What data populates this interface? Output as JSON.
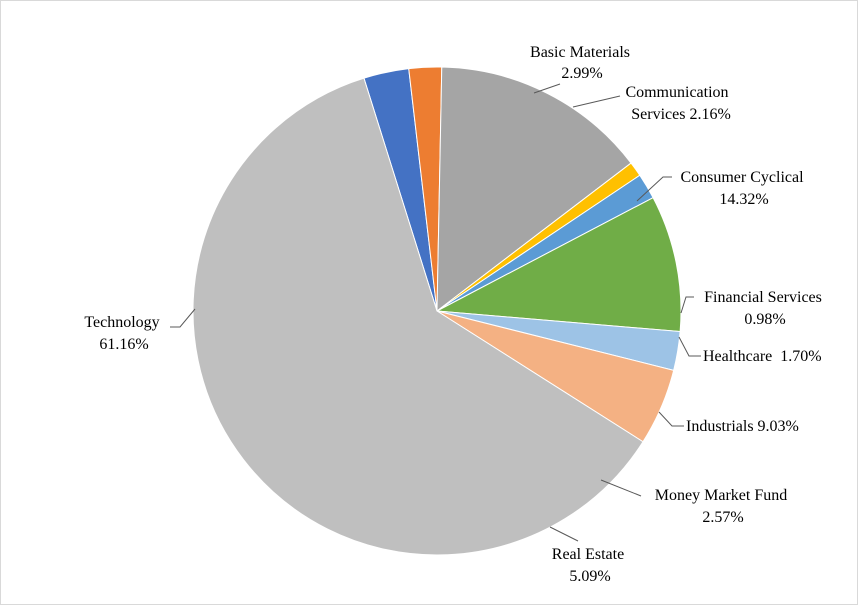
{
  "chart_data": {
    "type": "pie",
    "title": "",
    "legend": "none",
    "slices": [
      {
        "name": "Basic Materials",
        "value": 2.99,
        "label": "2.99%",
        "color": "#4472c4"
      },
      {
        "name": "Communication Services",
        "value": 2.16,
        "label": "2.16%",
        "color": "#ed7d31"
      },
      {
        "name": "Consumer Cyclical",
        "value": 14.32,
        "label": "14.32%",
        "color": "#a5a5a5"
      },
      {
        "name": "Financial Services",
        "value": 0.98,
        "label": "0.98%",
        "color": "#ffc000"
      },
      {
        "name": "Healthcare",
        "value": 1.7,
        "label": "1.70%",
        "color": "#5b9bd5"
      },
      {
        "name": "Industrials",
        "value": 9.03,
        "label": "9.03%",
        "color": "#70ad47"
      },
      {
        "name": "Money Market Fund",
        "value": 2.57,
        "label": "2.57%",
        "color": "#9dc3e6"
      },
      {
        "name": "Real Estate",
        "value": 5.09,
        "label": "5.09%",
        "color": "#f4b183"
      },
      {
        "name": "Technology",
        "value": 61.16,
        "label": "61.16%",
        "color": "#bfbfbf"
      }
    ],
    "data_labels": [
      {
        "lines": [
          "Basic Materials",
          "2.99%"
        ]
      },
      {
        "lines": [
          "Communication",
          "Services 2.16%"
        ]
      },
      {
        "lines": [
          "Consumer Cyclical",
          "14.32%"
        ]
      },
      {
        "lines": [
          "Financial Services",
          "0.98%"
        ]
      },
      {
        "lines": [
          "Healthcare  1.70%"
        ]
      },
      {
        "lines": [
          "Industrials 9.03%"
        ]
      },
      {
        "lines": [
          "Money Market Fund",
          "2.57%"
        ]
      },
      {
        "lines": [
          "Real Estate",
          "5.09%"
        ]
      },
      {
        "lines": [
          "Technology",
          "61.16%"
        ]
      }
    ]
  }
}
